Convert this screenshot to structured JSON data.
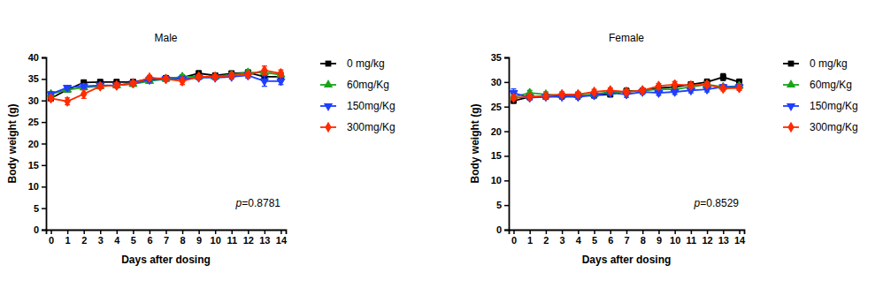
{
  "chart_data": [
    {
      "type": "line",
      "title": "Male",
      "x_label": "Days after dosing",
      "y_label": "Body weight (g)",
      "x": [
        0,
        1,
        2,
        3,
        4,
        5,
        6,
        7,
        8,
        9,
        10,
        11,
        12,
        13,
        14
      ],
      "xlim": [
        -0.3,
        14.3
      ],
      "xticks": [
        0,
        1,
        2,
        3,
        4,
        5,
        6,
        7,
        8,
        9,
        10,
        11,
        12,
        13,
        14
      ],
      "ylim": [
        0,
        40
      ],
      "yticks": [
        0,
        5,
        10,
        15,
        20,
        25,
        30,
        35,
        40
      ],
      "annotations": [
        {
          "text": "p=0.8781"
        }
      ],
      "series": [
        {
          "name": "0 mg/kg",
          "color": "#000000",
          "marker": "square",
          "values": [
            30.5,
            32.5,
            34.2,
            34.3,
            34.3,
            34.3,
            35.0,
            35.2,
            35.3,
            36.3,
            35.8,
            36.3,
            36.5,
            35.5,
            35.5
          ],
          "errors": [
            0.5,
            0.5,
            0.5,
            0.5,
            0.5,
            0.5,
            0.5,
            0.5,
            0.5,
            0.6,
            0.5,
            0.5,
            0.6,
            0.6,
            0.6
          ]
        },
        {
          "name": "60mg/Kg",
          "color": "#1aa31a",
          "marker": "triangle",
          "values": [
            31.5,
            32.5,
            33.0,
            33.3,
            33.5,
            33.8,
            34.5,
            35.0,
            35.5,
            35.5,
            35.5,
            36.0,
            36.5,
            36.5,
            36.0
          ],
          "errors": [
            0.5,
            0.5,
            0.5,
            0.5,
            0.5,
            0.5,
            0.5,
            0.5,
            0.5,
            0.5,
            0.5,
            0.5,
            0.6,
            0.6,
            0.6
          ]
        },
        {
          "name": "150mg/Kg",
          "color": "#1f3fff",
          "marker": "triangle-down",
          "values": [
            31.5,
            33.0,
            33.3,
            33.5,
            33.5,
            34.0,
            34.8,
            35.0,
            35.0,
            35.3,
            35.3,
            35.5,
            35.8,
            34.5,
            34.5
          ],
          "errors": [
            0.5,
            0.5,
            0.5,
            0.5,
            0.5,
            0.5,
            0.5,
            0.5,
            0.5,
            0.5,
            0.5,
            0.5,
            0.6,
            1.2,
            0.8
          ]
        },
        {
          "name": "300mg/Kg",
          "color": "#ff2a00",
          "marker": "diamond",
          "values": [
            30.5,
            29.8,
            31.5,
            33.3,
            33.5,
            34.0,
            35.3,
            35.0,
            34.5,
            35.5,
            35.5,
            35.8,
            36.0,
            37.0,
            36.3
          ],
          "errors": [
            0.5,
            0.8,
            1.0,
            0.6,
            0.6,
            0.5,
            0.5,
            0.6,
            0.8,
            0.5,
            0.5,
            0.5,
            0.6,
            1.0,
            0.8
          ]
        }
      ]
    },
    {
      "type": "line",
      "title": "Female",
      "x_label": "Days after dosing",
      "y_label": "Body weight (g)",
      "x": [
        0,
        1,
        2,
        3,
        4,
        5,
        6,
        7,
        8,
        9,
        10,
        11,
        12,
        13,
        14
      ],
      "xlim": [
        -0.3,
        14.3
      ],
      "xticks": [
        0,
        1,
        2,
        3,
        4,
        5,
        6,
        7,
        8,
        9,
        10,
        11,
        12,
        13,
        14
      ],
      "ylim": [
        0,
        35
      ],
      "yticks": [
        0,
        5,
        10,
        15,
        20,
        25,
        30,
        35
      ],
      "annotations": [
        {
          "text": "p=0.8529"
        }
      ],
      "series": [
        {
          "name": "0 mg/kg",
          "color": "#000000",
          "marker": "square",
          "values": [
            26.2,
            27.0,
            27.0,
            27.2,
            27.3,
            27.3,
            27.5,
            28.2,
            28.2,
            28.8,
            29.0,
            29.5,
            30.0,
            31.0,
            30.0
          ],
          "errors": [
            0.5,
            0.5,
            0.5,
            0.5,
            0.5,
            0.5,
            0.5,
            0.5,
            0.5,
            0.5,
            0.5,
            0.5,
            0.6,
            0.7,
            0.6
          ]
        },
        {
          "name": "60mg/Kg",
          "color": "#1aa31a",
          "marker": "triangle",
          "values": [
            27.0,
            27.8,
            27.5,
            27.3,
            27.3,
            27.5,
            28.0,
            28.0,
            28.3,
            28.5,
            28.5,
            29.0,
            29.5,
            29.0,
            29.2
          ],
          "errors": [
            0.5,
            0.5,
            0.5,
            0.5,
            0.5,
            0.5,
            0.5,
            0.5,
            0.5,
            0.5,
            0.5,
            0.5,
            0.5,
            0.5,
            0.5
          ]
        },
        {
          "name": "150mg/Kg",
          "color": "#1f3fff",
          "marker": "triangle-down",
          "values": [
            27.8,
            26.8,
            27.0,
            27.0,
            27.0,
            27.3,
            27.8,
            27.5,
            28.0,
            27.8,
            28.0,
            28.3,
            28.5,
            29.0,
            29.0
          ],
          "errors": [
            0.8,
            0.5,
            0.5,
            0.5,
            0.5,
            0.5,
            0.5,
            0.6,
            0.5,
            0.5,
            0.5,
            0.5,
            0.5,
            0.5,
            0.5
          ]
        },
        {
          "name": "300mg/Kg",
          "color": "#ff2a00",
          "marker": "diamond",
          "values": [
            26.8,
            27.0,
            27.2,
            27.5,
            27.5,
            28.0,
            28.3,
            28.0,
            28.3,
            29.2,
            29.5,
            29.3,
            29.5,
            28.7,
            28.8
          ],
          "errors": [
            0.5,
            0.5,
            0.5,
            0.5,
            0.5,
            0.5,
            0.5,
            0.5,
            0.5,
            0.5,
            0.6,
            0.5,
            0.5,
            0.5,
            0.5
          ]
        }
      ]
    }
  ]
}
